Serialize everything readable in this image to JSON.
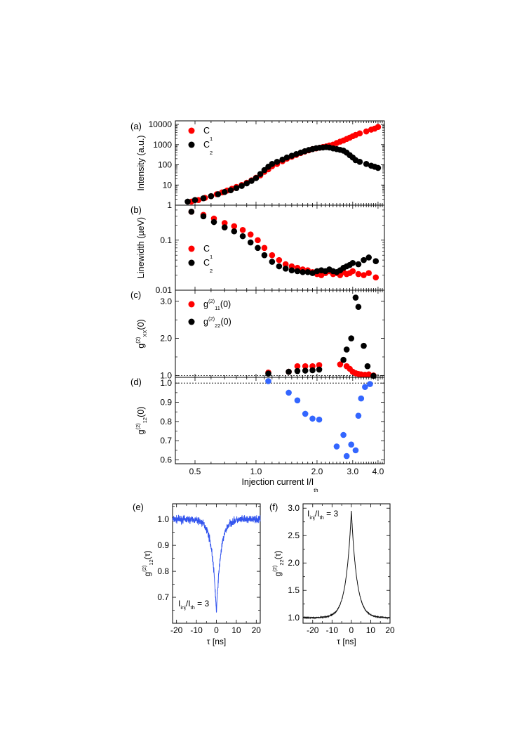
{
  "chart_data": [
    {
      "id": "a",
      "panel_label": "(a)",
      "type": "scatter",
      "xscale": "log",
      "yscale": "log",
      "xlim": [
        0.4,
        4.3
      ],
      "ylim": [
        1,
        15000
      ],
      "ylabel": "Intensity (a.u.)",
      "yticks": [
        1,
        10,
        100,
        1000,
        10000
      ],
      "yticklabels": [
        "1",
        "10",
        "100",
        "1000",
        "10000"
      ],
      "legend": {
        "position": "top-left",
        "entries": [
          {
            "base": "C",
            "sub": "1"
          },
          {
            "base": "C",
            "sub": "2"
          }
        ]
      },
      "series": [
        {
          "name": "C1",
          "color": "#ff0000",
          "x": [
            0.48,
            0.52,
            0.56,
            0.6,
            0.64,
            0.68,
            0.72,
            0.76,
            0.8,
            0.85,
            0.9,
            0.95,
            1.0,
            1.05,
            1.1,
            1.15,
            1.2,
            1.27,
            1.35,
            1.42,
            1.5,
            1.58,
            1.66,
            1.74,
            1.82,
            1.9,
            1.98,
            2.06,
            2.14,
            2.22,
            2.3,
            2.4,
            2.5,
            2.6,
            2.7,
            2.8,
            2.9,
            3.0,
            3.1,
            3.25,
            3.5,
            3.7,
            3.85,
            4.0
          ],
          "y": [
            1.5,
            1.8,
            2.3,
            2.8,
            3.5,
            4.3,
            5.3,
            6.5,
            8,
            10,
            13,
            17,
            23,
            30,
            45,
            60,
            85,
            110,
            150,
            200,
            250,
            310,
            380,
            450,
            520,
            600,
            650,
            700,
            760,
            820,
            900,
            1000,
            1200,
            1400,
            1600,
            1900,
            2200,
            2600,
            3000,
            3600,
            4500,
            5500,
            6200,
            7500
          ]
        },
        {
          "name": "C2",
          "color": "#000000",
          "x": [
            0.46,
            0.5,
            0.55,
            0.6,
            0.65,
            0.7,
            0.75,
            0.8,
            0.85,
            0.9,
            0.95,
            1.0,
            1.05,
            1.1,
            1.15,
            1.2,
            1.27,
            1.35,
            1.42,
            1.5,
            1.58,
            1.66,
            1.74,
            1.82,
            1.9,
            1.98,
            2.06,
            2.14,
            2.22,
            2.3,
            2.4,
            2.5,
            2.6,
            2.7,
            2.8,
            2.9,
            3.0,
            3.1,
            3.25,
            3.5,
            3.7,
            3.85,
            4.0
          ],
          "y": [
            1.5,
            1.8,
            2.2,
            2.8,
            3.5,
            4.5,
            5.5,
            7,
            9,
            12,
            16,
            22,
            35,
            55,
            80,
            110,
            140,
            180,
            230,
            280,
            340,
            400,
            470,
            540,
            600,
            660,
            700,
            720,
            750,
            720,
            650,
            600,
            550,
            500,
            400,
            300,
            230,
            170,
            140,
            110,
            90,
            80,
            70
          ]
        }
      ]
    },
    {
      "id": "b",
      "panel_label": "(b)",
      "type": "scatter",
      "xscale": "log",
      "yscale": "log",
      "xlim": [
        0.4,
        4.3
      ],
      "ylim": [
        0.01,
        0.5
      ],
      "ylabel": "Linewidth (µeV)",
      "yticks": [
        0.01,
        0.1
      ],
      "yticklabels": [
        "0.01",
        "0.1"
      ],
      "legend": {
        "position": "center-left",
        "entries": [
          {
            "base": "C",
            "sub": "1"
          },
          {
            "base": "C",
            "sub": "2"
          }
        ]
      },
      "series": [
        {
          "name": "C1",
          "color": "#ff0000",
          "x": [
            0.48,
            0.55,
            0.62,
            0.7,
            0.78,
            0.86,
            0.94,
            1.02,
            1.1,
            1.2,
            1.3,
            1.4,
            1.5,
            1.6,
            1.7,
            1.8,
            1.9,
            2.0,
            2.1,
            2.2,
            2.3,
            2.4,
            2.5,
            2.6,
            2.7,
            2.8,
            2.9,
            3.0,
            3.2,
            3.4,
            3.6,
            3.9
          ],
          "y": [
            0.37,
            0.32,
            0.27,
            0.22,
            0.19,
            0.16,
            0.13,
            0.1,
            0.07,
            0.05,
            0.04,
            0.033,
            0.03,
            0.028,
            0.026,
            0.025,
            0.023,
            0.021,
            0.02,
            0.022,
            0.024,
            0.021,
            0.022,
            0.02,
            0.023,
            0.021,
            0.022,
            0.024,
            0.021,
            0.02,
            0.022,
            0.018
          ]
        },
        {
          "name": "C2",
          "color": "#000000",
          "x": [
            0.48,
            0.55,
            0.62,
            0.7,
            0.78,
            0.86,
            0.94,
            1.02,
            1.1,
            1.2,
            1.3,
            1.4,
            1.5,
            1.6,
            1.7,
            1.8,
            1.9,
            2.0,
            2.1,
            2.2,
            2.3,
            2.4,
            2.5,
            2.6,
            2.7,
            2.8,
            2.9,
            3.0,
            3.2,
            3.4,
            3.6,
            3.9
          ],
          "y": [
            0.37,
            0.3,
            0.23,
            0.18,
            0.15,
            0.12,
            0.09,
            0.07,
            0.05,
            0.037,
            0.03,
            0.027,
            0.025,
            0.024,
            0.023,
            0.023,
            0.022,
            0.024,
            0.025,
            0.024,
            0.026,
            0.024,
            0.023,
            0.025,
            0.028,
            0.03,
            0.032,
            0.035,
            0.033,
            0.04,
            0.045,
            0.038
          ]
        }
      ]
    },
    {
      "id": "c",
      "panel_label": "(c)",
      "type": "scatter",
      "xscale": "log",
      "yscale": "linear",
      "xlim": [
        0.4,
        4.3
      ],
      "ylim": [
        0.95,
        3.3
      ],
      "ylabel": {
        "base": "g",
        "sup": "(2)",
        "sub": "XX",
        "arg": "(0)"
      },
      "yticks": [
        1.0,
        2.0,
        3.0
      ],
      "yticklabels": [
        "1.0",
        "2.0",
        "3.0"
      ],
      "reference_line": 1.0,
      "legend": {
        "position": "top-left",
        "entries": [
          {
            "base": "g",
            "sup": "(2)",
            "sub": "11",
            "arg": "(0)"
          },
          {
            "base": "g",
            "sup": "(2)",
            "sub": "22",
            "arg": "(0)"
          }
        ]
      },
      "series": [
        {
          "name": "g11(0)",
          "color": "#ff0000",
          "x": [
            1.15,
            1.45,
            1.6,
            1.75,
            1.9,
            2.05,
            2.6,
            2.8,
            2.9,
            3.0,
            3.1,
            3.2,
            3.3,
            3.45,
            3.6,
            3.8
          ],
          "y": [
            1.08,
            1.1,
            1.25,
            1.25,
            1.25,
            1.28,
            1.3,
            1.25,
            1.18,
            1.1,
            1.06,
            1.04,
            1.03,
            1.02,
            1.03,
            1.0
          ]
        },
        {
          "name": "g22(0)",
          "color": "#000000",
          "x": [
            1.15,
            1.45,
            1.6,
            1.75,
            1.9,
            2.05,
            2.7,
            2.8,
            2.95,
            3.1,
            3.2,
            3.4,
            3.55,
            3.8
          ],
          "y": [
            1.05,
            1.1,
            1.12,
            1.13,
            1.14,
            1.16,
            1.42,
            1.7,
            2.0,
            3.1,
            2.85,
            1.8,
            1.25,
            0.99
          ]
        }
      ]
    },
    {
      "id": "d",
      "panel_label": "(d)",
      "type": "scatter",
      "xscale": "log",
      "yscale": "linear",
      "xlim": [
        0.4,
        4.3
      ],
      "ylim": [
        0.58,
        1.03
      ],
      "ylabel": {
        "base": "g",
        "sup": "(2)",
        "sub": "12",
        "arg": "(0)"
      },
      "yticks": [
        0.6,
        0.7,
        0.8,
        0.9,
        1.0
      ],
      "yticklabels": [
        "0.6",
        "0.7",
        "0.8",
        "0.9",
        "1.0"
      ],
      "xticks": [
        0.5,
        1.0,
        2.0,
        3.0,
        4.0
      ],
      "xticklabels": [
        "0.5",
        "1.0",
        "2.0",
        "3.0",
        "4.0"
      ],
      "xlabel": {
        "base": "Injection current I/I",
        "sub": "th"
      },
      "reference_line": 1.0,
      "series": [
        {
          "name": "g12(0)",
          "color": "#3366ff",
          "x": [
            1.15,
            1.45,
            1.6,
            1.75,
            1.9,
            2.05,
            2.5,
            2.7,
            2.8,
            2.95,
            3.1,
            3.2,
            3.3,
            3.45,
            3.65
          ],
          "y": [
            1.01,
            0.95,
            0.91,
            0.84,
            0.815,
            0.81,
            0.67,
            0.73,
            0.62,
            0.68,
            0.65,
            0.83,
            0.92,
            0.98,
            0.995
          ]
        }
      ]
    },
    {
      "id": "e",
      "panel_label": "(e)",
      "type": "line",
      "xlim": [
        -22,
        22
      ],
      "ylim": [
        0.6,
        1.06
      ],
      "xticks": [
        -20,
        -10,
        0,
        10,
        20
      ],
      "xticklabels": [
        "-20",
        "-10",
        "0",
        "10",
        "20"
      ],
      "yticks": [
        0.7,
        0.8,
        0.9,
        1.0
      ],
      "yticklabels": [
        "0.7",
        "0.8",
        "0.9",
        "1.0"
      ],
      "xlabel": "τ [ns]",
      "ylabel": {
        "base": "g",
        "sup": "(2)",
        "sub": "12",
        "arg": "(τ)"
      },
      "annotation": {
        "p1": "I",
        "p1sub": "inj",
        "p2": "/I",
        "p2sub": "th",
        "p3": " = 3"
      },
      "series": [
        {
          "name": "g12(tau)",
          "color": "#3355ee",
          "model": {
            "baseline": 1.0,
            "amplitude": -0.36,
            "decay_ns": 2.2,
            "noise": 0.014
          }
        }
      ]
    },
    {
      "id": "f",
      "panel_label": "(f)",
      "type": "line",
      "xlim": [
        -25,
        20
      ],
      "ylim": [
        0.9,
        3.08
      ],
      "xticks": [
        -20,
        -10,
        0,
        10,
        20
      ],
      "xticklabels": [
        "-20",
        "-10",
        "0",
        "10",
        "20"
      ],
      "yticks": [
        1.0,
        1.5,
        2.0,
        2.5,
        3.0
      ],
      "yticklabels": [
        "1.0",
        "1.5",
        "2.0",
        "2.5",
        "3.0"
      ],
      "xlabel": "τ [ns]",
      "ylabel": {
        "base": "g",
        "sup": "(2)",
        "sub": "22",
        "arg": "(τ)"
      },
      "annotation": {
        "p1": "I",
        "p1sub": "inj",
        "p2": "/I",
        "p2sub": "th",
        "p3": " = 3"
      },
      "series": [
        {
          "name": "g22(tau)",
          "color": "#111111",
          "model": {
            "baseline": 1.0,
            "amplitude": 1.95,
            "decay_ns": 2.8,
            "noise": 0.01
          }
        }
      ]
    }
  ]
}
